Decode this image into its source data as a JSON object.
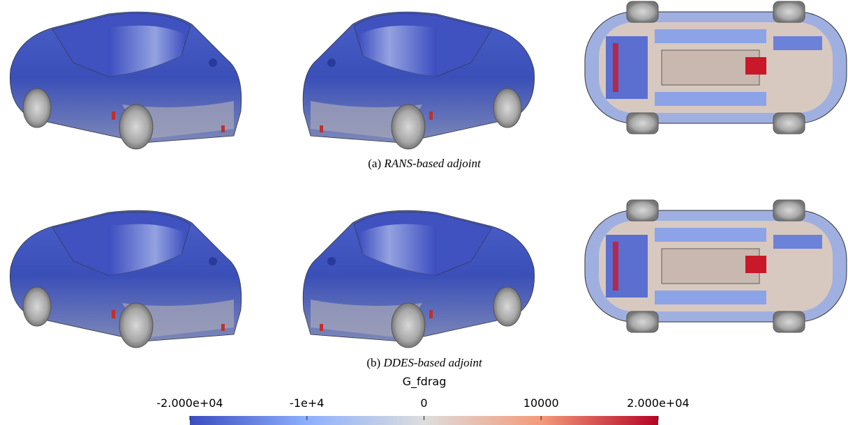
{
  "captions": [
    {
      "label": "(a)",
      "text": "RANS-based adjoint"
    },
    {
      "label": "(b)",
      "text": "DDES-based adjoint"
    }
  ],
  "colorbar": {
    "title": "G_fdrag",
    "lim": [
      -20000,
      20000
    ],
    "ticks": [
      {
        "value": -20000,
        "label": "-2.000e+04"
      },
      {
        "value": -10000,
        "label": "-1e+4"
      },
      0,
      10000,
      {
        "value": 20000,
        "label": "2.000e+04"
      }
    ],
    "colors": [
      "#3b4cc0",
      "#8db0fe",
      "#dddddd",
      "#f49a7b",
      "#b40426"
    ]
  }
}
